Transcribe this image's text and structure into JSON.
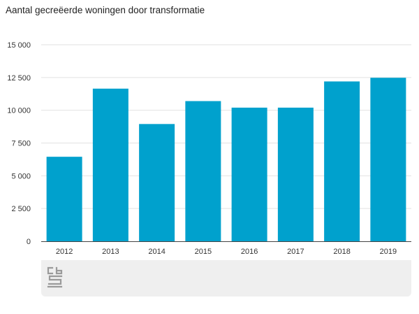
{
  "title": "Aantal gecreëerde woningen door transformatie",
  "chart_data": {
    "type": "bar",
    "title": "Aantal gecreëerde woningen door transformatie",
    "xlabel": "",
    "ylabel": "",
    "categories": [
      "2012",
      "2013",
      "2014",
      "2015",
      "2016",
      "2017",
      "2018",
      "2019"
    ],
    "values": [
      6450,
      11650,
      8950,
      10700,
      10200,
      10200,
      12200,
      12480
    ],
    "ylim": [
      0,
      15000
    ],
    "yticks": [
      0,
      2500,
      5000,
      7500,
      10000,
      12500,
      15000
    ],
    "ytick_labels": [
      "0",
      "2 500",
      "5 000",
      "7 500",
      "10 000",
      "12 500",
      "15 000"
    ],
    "grid": true,
    "bar_color": "#00a1cd",
    "legend": "none"
  },
  "logo": {
    "name": "cbs-logo-icon",
    "text": "cbs"
  }
}
